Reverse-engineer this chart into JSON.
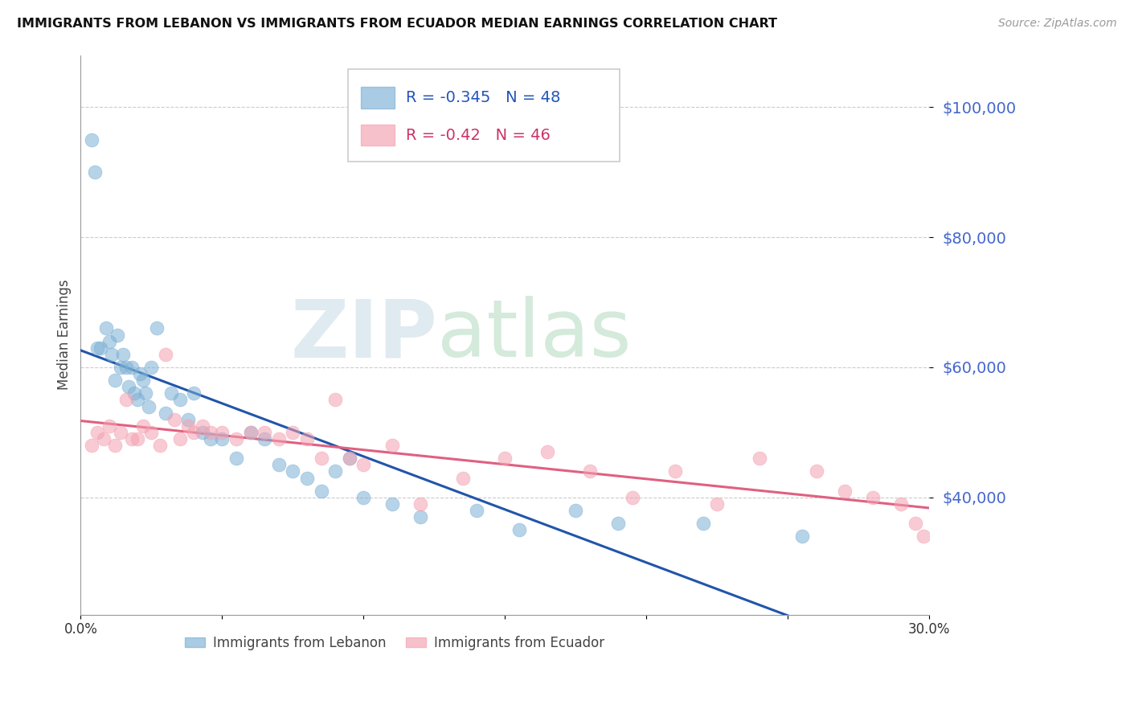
{
  "title": "IMMIGRANTS FROM LEBANON VS IMMIGRANTS FROM ECUADOR MEDIAN EARNINGS CORRELATION CHART",
  "source": "Source: ZipAtlas.com",
  "ylabel": "Median Earnings",
  "ytick_values": [
    40000,
    60000,
    80000,
    100000
  ],
  "legend_entries": [
    {
      "label": "Immigrants from Lebanon",
      "R": -0.345,
      "N": 48,
      "color": "#7bafd4"
    },
    {
      "label": "Immigrants from Ecuador",
      "R": -0.42,
      "N": 46,
      "color": "#f4a0b0"
    }
  ],
  "blue_color": "#7bafd4",
  "pink_color": "#f4a0b0",
  "blue_line_color": "#2255aa",
  "pink_line_color": "#e06080",
  "background_color": "#ffffff",
  "xmin": 0.0,
  "xmax": 0.3,
  "ymin": 22000,
  "ymax": 108000,
  "lebanon_x": [
    0.004,
    0.005,
    0.006,
    0.007,
    0.009,
    0.01,
    0.011,
    0.012,
    0.013,
    0.014,
    0.015,
    0.016,
    0.017,
    0.018,
    0.019,
    0.02,
    0.021,
    0.022,
    0.023,
    0.024,
    0.025,
    0.027,
    0.03,
    0.032,
    0.035,
    0.038,
    0.04,
    0.043,
    0.046,
    0.05,
    0.055,
    0.06,
    0.065,
    0.07,
    0.075,
    0.08,
    0.085,
    0.09,
    0.095,
    0.1,
    0.11,
    0.12,
    0.14,
    0.155,
    0.175,
    0.19,
    0.22,
    0.255
  ],
  "lebanon_y": [
    95000,
    90000,
    63000,
    63000,
    66000,
    64000,
    62000,
    58000,
    65000,
    60000,
    62000,
    60000,
    57000,
    60000,
    56000,
    55000,
    59000,
    58000,
    56000,
    54000,
    60000,
    66000,
    53000,
    56000,
    55000,
    52000,
    56000,
    50000,
    49000,
    49000,
    46000,
    50000,
    49000,
    45000,
    44000,
    43000,
    41000,
    44000,
    46000,
    40000,
    39000,
    37000,
    38000,
    35000,
    38000,
    36000,
    36000,
    34000
  ],
  "ecuador_x": [
    0.004,
    0.006,
    0.008,
    0.01,
    0.012,
    0.014,
    0.016,
    0.018,
    0.02,
    0.022,
    0.025,
    0.028,
    0.03,
    0.033,
    0.035,
    0.038,
    0.04,
    0.043,
    0.046,
    0.05,
    0.055,
    0.06,
    0.065,
    0.07,
    0.075,
    0.08,
    0.085,
    0.09,
    0.095,
    0.1,
    0.11,
    0.12,
    0.135,
    0.15,
    0.165,
    0.18,
    0.195,
    0.21,
    0.225,
    0.24,
    0.26,
    0.27,
    0.28,
    0.29,
    0.295,
    0.298
  ],
  "ecuador_y": [
    48000,
    50000,
    49000,
    51000,
    48000,
    50000,
    55000,
    49000,
    49000,
    51000,
    50000,
    48000,
    62000,
    52000,
    49000,
    51000,
    50000,
    51000,
    50000,
    50000,
    49000,
    50000,
    50000,
    49000,
    50000,
    49000,
    46000,
    55000,
    46000,
    45000,
    48000,
    39000,
    43000,
    46000,
    47000,
    44000,
    40000,
    44000,
    39000,
    46000,
    44000,
    41000,
    40000,
    39000,
    36000,
    34000
  ]
}
